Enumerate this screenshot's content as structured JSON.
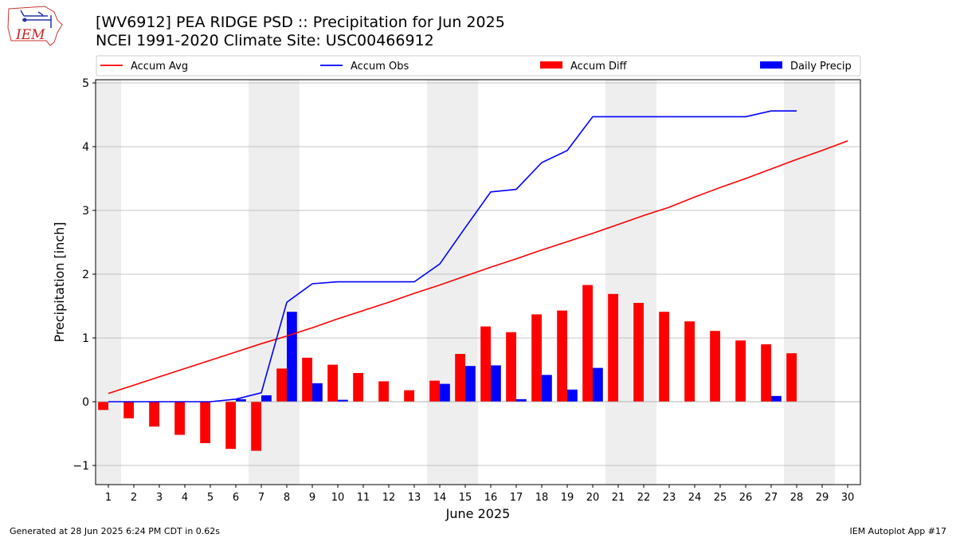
{
  "logo_text": "IEM",
  "title_line1": "[WV6912] PEA RIDGE PSD :: Precipitation for Jun 2025",
  "title_line2": "NCEI 1991-2020 Climate Site: USC00466912",
  "footer_left": "Generated at 28 Jun 2025 6:24 PM CDT in 0.62s",
  "footer_right": "IEM Autoplot App #17",
  "colors": {
    "avg": "#ff0000",
    "obs": "#0000ff",
    "diff": "#ff0000",
    "daily": "#0000ff",
    "weekend_shade": "#eeeeee",
    "grid": "#b0b0b0"
  },
  "chart_data": {
    "type": "bar",
    "xlabel": "June 2025",
    "ylabel": "Precipitation [inch]",
    "xlim": [
      0.5,
      30.5
    ],
    "ylim": [
      -1.3,
      5.05
    ],
    "yticks": [
      -1,
      0,
      1,
      2,
      3,
      4,
      5
    ],
    "ytick_labels": [
      "−1",
      "0",
      "1",
      "2",
      "3",
      "4",
      "5"
    ],
    "grid": "horizontal",
    "legend_placement": "top",
    "days": [
      1,
      2,
      3,
      4,
      5,
      6,
      7,
      8,
      9,
      10,
      11,
      12,
      13,
      14,
      15,
      16,
      17,
      18,
      19,
      20,
      21,
      22,
      23,
      24,
      25,
      26,
      27,
      28,
      29,
      30
    ],
    "shaded_days": [
      1,
      7,
      8,
      14,
      15,
      21,
      22,
      28,
      29
    ],
    "series": [
      {
        "name": "Accum Avg",
        "kind": "line",
        "values": [
          0.13,
          0.26,
          0.39,
          0.52,
          0.65,
          0.78,
          0.91,
          1.03,
          1.16,
          1.3,
          1.43,
          1.56,
          1.7,
          1.83,
          1.97,
          2.11,
          2.24,
          2.38,
          2.51,
          2.64,
          2.78,
          2.92,
          3.05,
          3.21,
          3.36,
          3.5,
          3.65,
          3.8,
          3.94,
          4.09
        ]
      },
      {
        "name": "Accum Obs",
        "kind": "line",
        "values": [
          0.0,
          0.0,
          0.0,
          0.0,
          0.0,
          0.04,
          0.14,
          1.56,
          1.85,
          1.88,
          1.88,
          1.88,
          1.88,
          2.16,
          2.73,
          3.29,
          3.33,
          3.75,
          3.94,
          4.47,
          4.47,
          4.47,
          4.47,
          4.47,
          4.47,
          4.47,
          4.56,
          4.56
        ]
      },
      {
        "name": "Accum Diff",
        "kind": "bar",
        "values": [
          -0.13,
          -0.26,
          -0.39,
          -0.52,
          -0.65,
          -0.74,
          -0.77,
          0.52,
          0.69,
          0.58,
          0.45,
          0.32,
          0.18,
          0.33,
          0.75,
          1.18,
          1.09,
          1.37,
          1.43,
          1.83,
          1.69,
          1.55,
          1.41,
          1.26,
          1.11,
          0.96,
          0.9,
          0.76
        ]
      },
      {
        "name": "Daily Precip",
        "kind": "bar",
        "values": [
          0.0,
          0.0,
          0.0,
          0.0,
          0.0,
          0.04,
          0.1,
          1.41,
          0.29,
          0.03,
          0.0,
          0.0,
          0.0,
          0.28,
          0.56,
          0.57,
          0.04,
          0.42,
          0.19,
          0.53,
          0.0,
          0.0,
          0.0,
          0.0,
          0.0,
          0.0,
          0.09,
          0.0
        ]
      }
    ]
  }
}
